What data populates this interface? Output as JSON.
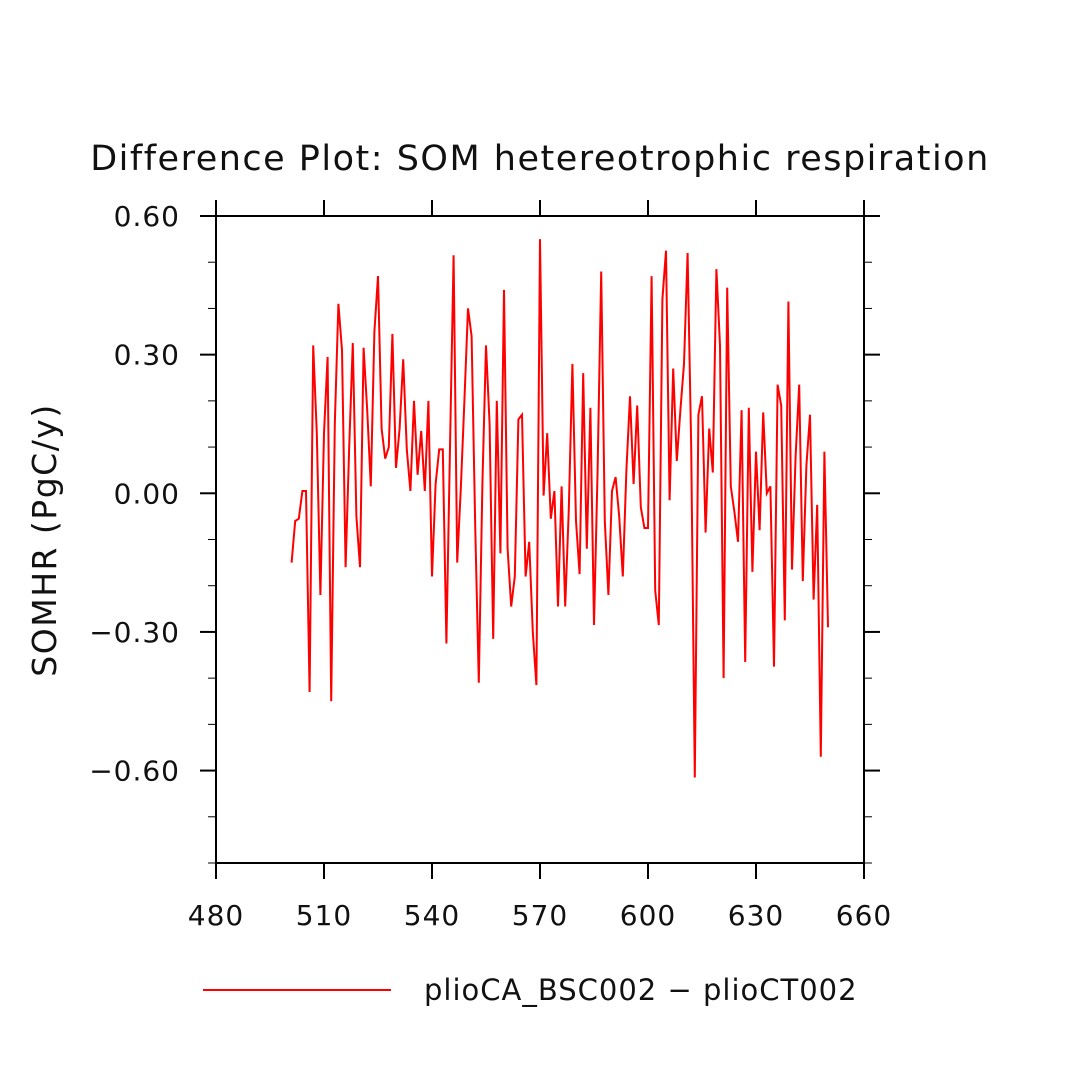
{
  "chart_data": {
    "type": "line",
    "title": "Difference Plot: SOM hetereotrophic respiration",
    "xlabel": "",
    "ylabel": "SOMHR  (PgC/y)",
    "xlim": [
      480,
      660
    ],
    "ylim": [
      -0.8,
      0.6
    ],
    "x_ticks": [
      480,
      510,
      540,
      570,
      600,
      630,
      660
    ],
    "x_tick_labels": [
      "480",
      "510",
      "540",
      "570",
      "600",
      "630",
      "660"
    ],
    "y_ticks": [
      0.6,
      0.3,
      0.0,
      -0.3,
      -0.6
    ],
    "y_tick_labels": [
      "0.60",
      "0.30",
      "0.00",
      "−0.30",
      "−0.60"
    ],
    "grid": false,
    "legend_position": "bottom",
    "series": [
      {
        "name": "plioCA_BSC002 − plioCT002",
        "color": "#ff0000",
        "x": [
          501,
          502,
          503,
          504,
          505,
          506,
          507,
          508,
          509,
          510,
          511,
          512,
          513,
          514,
          515,
          516,
          517,
          518,
          519,
          520,
          521,
          522,
          523,
          524,
          525,
          526,
          527,
          528,
          529,
          530,
          531,
          532,
          533,
          534,
          535,
          536,
          537,
          538,
          539,
          540,
          541,
          542,
          543,
          544,
          545,
          546,
          547,
          548,
          549,
          550,
          551,
          552,
          553,
          554,
          555,
          556,
          557,
          558,
          559,
          560,
          561,
          562,
          563,
          564,
          565,
          566,
          567,
          568,
          569,
          570,
          571,
          572,
          573,
          574,
          575,
          576,
          577,
          578,
          579,
          580,
          581,
          582,
          583,
          584,
          585,
          586,
          587,
          588,
          589,
          590,
          591,
          592,
          593,
          594,
          595,
          596,
          597,
          598,
          599,
          600,
          601,
          602,
          603,
          604,
          605,
          606,
          607,
          608,
          609,
          610,
          611,
          612,
          613,
          614,
          615,
          616,
          617,
          618,
          619,
          620,
          621,
          622,
          623,
          624,
          625,
          626,
          627,
          628,
          629,
          630,
          631,
          632,
          633,
          634,
          635,
          636,
          637,
          638,
          639,
          640,
          641,
          642,
          643,
          644,
          645,
          646,
          647,
          648,
          649,
          650
        ],
        "values": [
          -0.15,
          -0.06,
          -0.055,
          0.005,
          0.005,
          -0.43,
          0.32,
          0.13,
          -0.22,
          0.13,
          0.295,
          -0.45,
          0.15,
          0.41,
          0.31,
          -0.16,
          0.1,
          0.325,
          -0.05,
          -0.16,
          0.315,
          0.18,
          0.015,
          0.35,
          0.47,
          0.14,
          0.075,
          0.1,
          0.345,
          0.055,
          0.14,
          0.29,
          0.095,
          0.005,
          0.2,
          0.04,
          0.135,
          0.005,
          0.2,
          -0.18,
          0.02,
          0.095,
          0.095,
          -0.325,
          0.1,
          0.515,
          -0.15,
          0.01,
          0.2,
          0.4,
          0.34,
          -0.07,
          -0.41,
          0.02,
          0.32,
          0.15,
          -0.315,
          0.2,
          -0.13,
          0.44,
          -0.12,
          -0.245,
          -0.18,
          0.16,
          0.17,
          -0.18,
          -0.105,
          -0.3,
          -0.415,
          0.55,
          -0.005,
          0.13,
          -0.055,
          0.005,
          -0.245,
          0.015,
          -0.245,
          -0.035,
          0.28,
          -0.06,
          -0.175,
          0.26,
          -0.12,
          0.185,
          -0.285,
          0.05,
          0.48,
          -0.06,
          -0.22,
          0.005,
          0.035,
          -0.05,
          -0.18,
          0.05,
          0.21,
          0.02,
          0.19,
          -0.03,
          -0.075,
          -0.075,
          0.47,
          -0.21,
          -0.285,
          0.42,
          0.525,
          -0.015,
          0.27,
          0.07,
          0.18,
          0.28,
          0.52,
          0.1,
          -0.615,
          0.17,
          0.21,
          -0.085,
          0.14,
          0.045,
          0.485,
          0.32,
          -0.4,
          0.445,
          0.015,
          -0.04,
          -0.105,
          0.18,
          -0.365,
          0.185,
          -0.17,
          0.09,
          -0.08,
          0.175,
          0.0,
          0.015,
          -0.375,
          0.235,
          0.19,
          -0.275,
          0.415,
          -0.165,
          0.08,
          0.235,
          -0.19,
          0.06,
          0.17,
          -0.23,
          -0.025,
          -0.57,
          0.09,
          -0.29
        ]
      }
    ]
  }
}
